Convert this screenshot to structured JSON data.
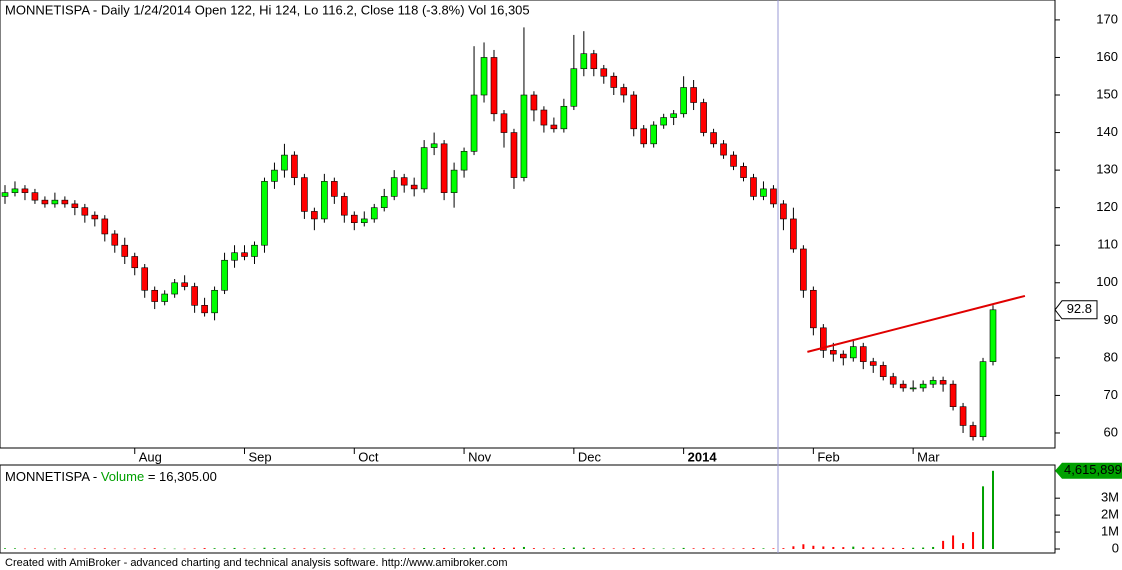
{
  "chart_data": {
    "type": "candlestick",
    "title": "MONNETISPA - Daily 1/24/2014 Open 122, Hi 124, Lo 116.2, Close 118 (-3.8%) Vol 16,305",
    "categories": [
      null,
      null,
      null,
      null,
      null,
      null,
      null,
      null,
      null,
      null,
      null,
      null,
      null,
      "Aug",
      null,
      null,
      null,
      null,
      null,
      null,
      null,
      null,
      null,
      null,
      "Sep",
      null,
      null,
      null,
      null,
      null,
      null,
      null,
      null,
      null,
      null,
      "Oct",
      null,
      null,
      null,
      null,
      null,
      null,
      null,
      null,
      null,
      null,
      "Nov",
      null,
      null,
      null,
      null,
      null,
      null,
      null,
      null,
      null,
      null,
      "Dec",
      null,
      null,
      null,
      null,
      null,
      null,
      null,
      null,
      null,
      null,
      "2014",
      null,
      null,
      null,
      null,
      null,
      null,
      null,
      null,
      null,
      null,
      null,
      null,
      "Feb",
      null,
      null,
      null,
      null,
      null,
      null,
      null,
      null,
      null,
      "Mar",
      null,
      null,
      null,
      null,
      null,
      null,
      null,
      null
    ],
    "ohlc": [
      [
        123,
        126,
        121,
        124
      ],
      [
        124,
        127,
        123,
        125
      ],
      [
        125,
        126,
        122,
        124
      ],
      [
        124,
        125,
        121,
        122
      ],
      [
        122,
        123,
        120,
        121
      ],
      [
        121,
        124,
        120,
        122
      ],
      [
        122,
        123,
        120,
        121
      ],
      [
        121,
        122,
        118,
        120
      ],
      [
        120,
        121,
        116,
        118
      ],
      [
        118,
        119,
        115,
        117
      ],
      [
        117,
        118,
        111,
        113
      ],
      [
        113,
        114,
        108,
        110
      ],
      [
        110,
        112,
        105,
        107
      ],
      [
        107,
        108,
        102,
        104
      ],
      [
        104,
        105,
        96,
        98
      ],
      [
        98,
        99,
        93,
        95
      ],
      [
        95,
        98,
        94,
        97
      ],
      [
        97,
        101,
        96,
        100
      ],
      [
        100,
        102,
        98,
        99
      ],
      [
        99,
        100,
        92,
        94
      ],
      [
        94,
        96,
        91,
        92
      ],
      [
        92,
        99,
        90,
        98
      ],
      [
        98,
        108,
        97,
        106
      ],
      [
        106,
        110,
        104,
        108
      ],
      [
        108,
        110,
        106,
        107
      ],
      [
        107,
        111,
        105,
        110
      ],
      [
        110,
        128,
        108,
        127
      ],
      [
        127,
        132,
        125,
        130
      ],
      [
        130,
        137,
        128,
        134
      ],
      [
        134,
        135,
        126,
        128
      ],
      [
        128,
        129,
        117,
        119
      ],
      [
        119,
        120,
        114,
        117
      ],
      [
        117,
        129,
        116,
        127
      ],
      [
        127,
        128,
        121,
        123
      ],
      [
        123,
        124,
        116,
        118
      ],
      [
        118,
        119,
        114,
        116
      ],
      [
        116,
        119,
        115,
        117
      ],
      [
        117,
        121,
        116,
        120
      ],
      [
        120,
        125,
        119,
        123
      ],
      [
        123,
        130,
        122,
        128
      ],
      [
        128,
        129,
        124,
        126
      ],
      [
        126,
        128,
        123,
        125
      ],
      [
        125,
        138,
        124,
        136
      ],
      [
        136,
        140,
        134,
        137
      ],
      [
        137,
        138,
        122,
        124
      ],
      [
        124,
        132,
        120,
        130
      ],
      [
        130,
        136,
        128,
        135
      ],
      [
        135,
        163,
        134,
        150
      ],
      [
        150,
        164,
        148,
        160
      ],
      [
        160,
        162,
        143,
        145
      ],
      [
        145,
        146,
        136,
        140
      ],
      [
        140,
        141,
        125,
        128
      ],
      [
        128,
        168,
        127,
        150
      ],
      [
        150,
        151,
        143,
        146
      ],
      [
        146,
        147,
        140,
        142
      ],
      [
        142,
        144,
        140,
        141
      ],
      [
        141,
        149,
        140,
        147
      ],
      [
        147,
        166,
        146,
        157
      ],
      [
        157,
        167,
        155,
        161
      ],
      [
        161,
        162,
        155,
        157
      ],
      [
        157,
        158,
        153,
        155
      ],
      [
        155,
        156,
        150,
        152
      ],
      [
        152,
        153,
        148,
        150
      ],
      [
        150,
        151,
        139,
        141
      ],
      [
        141,
        142,
        136,
        137
      ],
      [
        137,
        143,
        136,
        142
      ],
      [
        142,
        145,
        141,
        144
      ],
      [
        144,
        146,
        142,
        145
      ],
      [
        145,
        155,
        144,
        152
      ],
      [
        152,
        154,
        146,
        148
      ],
      [
        148,
        149,
        139,
        140
      ],
      [
        140,
        141,
        136,
        137
      ],
      [
        137,
        138,
        133,
        134
      ],
      [
        134,
        135,
        130,
        131
      ],
      [
        131,
        132,
        127,
        128
      ],
      [
        128,
        129,
        122,
        123
      ],
      [
        123,
        127,
        122,
        125
      ],
      [
        125,
        126,
        120,
        121
      ],
      [
        121,
        122,
        114,
        117
      ],
      [
        117,
        120,
        108,
        109
      ],
      [
        109,
        110,
        96,
        98
      ],
      [
        98,
        99,
        86,
        88
      ],
      [
        88,
        89,
        80,
        82
      ],
      [
        82,
        84,
        79,
        81
      ],
      [
        81,
        82,
        78,
        80
      ],
      [
        80,
        85,
        79,
        83
      ],
      [
        83,
        84,
        77,
        79
      ],
      [
        79,
        80,
        76,
        78
      ],
      [
        78,
        79,
        74,
        75
      ],
      [
        75,
        76,
        72,
        73
      ],
      [
        73,
        74,
        71,
        72
      ],
      [
        72,
        74,
        71,
        72
      ],
      [
        72,
        74,
        71,
        73
      ],
      [
        73,
        75,
        72,
        74
      ],
      [
        74,
        75,
        71,
        73
      ],
      [
        73,
        74,
        66,
        67
      ],
      [
        67,
        68,
        60,
        62
      ],
      [
        62,
        63,
        58,
        59
      ],
      [
        59,
        80,
        58,
        79
      ],
      [
        79,
        94,
        78,
        92.8
      ]
    ],
    "up_color": "#00ff00",
    "down_color": "#ff0000",
    "ylim": [
      56,
      175.3
    ],
    "yticks": [
      60,
      70,
      80,
      90,
      100,
      110,
      120,
      130,
      140,
      150,
      160,
      170
    ],
    "trendline": {
      "x": [
        80.4,
        102.2
      ],
      "y": [
        81.6,
        96.5
      ],
      "color": "#e00000"
    },
    "volume_title": {
      "symbol": "MONNETISPA -",
      "name": "Volume",
      "readout": "= 16,305.00",
      "name_color": "#00a000"
    },
    "volume": [
      42000,
      38000,
      25000,
      31000,
      27000,
      22000,
      35000,
      18000,
      29000,
      33000,
      41000,
      26000,
      30000,
      24000,
      37000,
      45000,
      28000,
      23000,
      19000,
      34000,
      52000,
      47000,
      39000,
      61000,
      33000,
      29000,
      72000,
      55000,
      48000,
      36000,
      40000,
      31000,
      44000,
      27000,
      30000,
      22000,
      26000,
      28000,
      35000,
      41000,
      30000,
      25000,
      58000,
      46000,
      62000,
      38000,
      43000,
      95000,
      88000,
      70000,
      54000,
      81000,
      120000,
      49000,
      37000,
      33000,
      58000,
      92000,
      76000,
      45000,
      39000,
      35000,
      31000,
      52000,
      47000,
      36000,
      29000,
      33000,
      64000,
      41000,
      48000,
      37000,
      33000,
      30000,
      42000,
      56000,
      38000,
      35000,
      49000,
      160000,
      280000,
      190000,
      150000,
      120000,
      110000,
      140000,
      100000,
      90000,
      80000,
      70000,
      60000,
      75000,
      85000,
      120000,
      480000,
      800000,
      350000,
      1000000,
      3700000,
      4615899
    ],
    "volume_last_label": "4,615,899",
    "vylim": [
      0,
      4900000
    ],
    "vyticks": [
      0,
      {
        "value": 1000000,
        "label": "1M"
      },
      {
        "value": 2000000,
        "label": "2M"
      },
      {
        "value": 3000000,
        "label": "3M"
      }
    ],
    "footer": "Created with AmiBroker - advanced charting and technical analysis software. http://www.amibroker.com"
  }
}
